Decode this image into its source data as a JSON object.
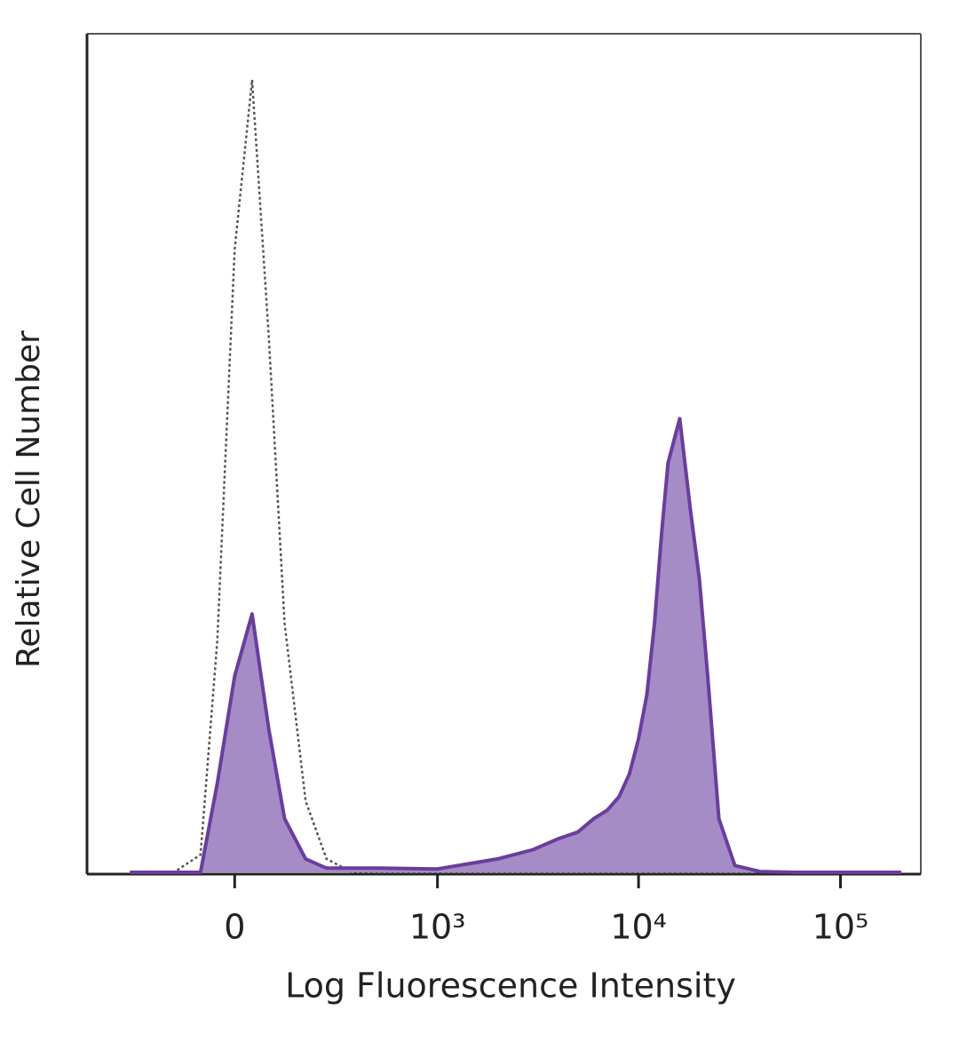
{
  "chart_data": {
    "type": "histogram-overlay",
    "x_label": "Log Fluorescence Intensity",
    "y_label": "Relative Cell Number",
    "xscale": "biexponential",
    "xlim": [
      -520,
      250000
    ],
    "ylim": [
      0,
      100
    ],
    "xticks": [
      0,
      {
        "value": 1000,
        "label": "10³"
      },
      {
        "value": 10000,
        "label": "10⁴"
      },
      {
        "value": 100000,
        "label": "10⁵"
      }
    ],
    "x": [
      -300,
      -150,
      -80,
      -40,
      0,
      40,
      80,
      120,
      180,
      250,
      350,
      500,
      1000,
      1500,
      2000,
      3000,
      4000,
      5000,
      6000,
      7000,
      8000,
      9000,
      10000,
      11000,
      12000,
      13000,
      14000,
      16000,
      18000,
      20000,
      22000,
      25000,
      30000,
      40000,
      60000,
      100000,
      200000
    ],
    "series": [
      {
        "style": "dotted",
        "color": "#555555",
        "values": [
          0,
          0,
          2.1,
          27.6,
          74.3,
          94.5,
          63.7,
          29.7,
          8.5,
          1.6,
          0.1,
          0,
          0,
          0,
          0,
          0,
          0,
          0,
          0,
          0,
          0,
          0,
          0,
          0,
          0,
          0,
          0,
          0,
          0,
          0,
          0,
          0,
          0,
          0,
          0,
          0,
          0
        ]
      },
      {
        "style": "filled",
        "color": "#6a3d9e",
        "fill": "#a68cc6",
        "values": [
          0,
          0,
          0,
          10.6,
          23.4,
          30.8,
          17,
          6.4,
          1.6,
          0.5,
          0.5,
          0.5,
          0.4,
          1.1,
          1.6,
          2.7,
          4.0,
          4.8,
          6.4,
          7.4,
          9.0,
          11.7,
          15.9,
          21.2,
          29.7,
          40.3,
          48.8,
          54.1,
          43.5,
          35.0,
          23.4,
          6.4,
          0.8,
          0.1,
          0,
          0,
          0
        ]
      }
    ]
  }
}
